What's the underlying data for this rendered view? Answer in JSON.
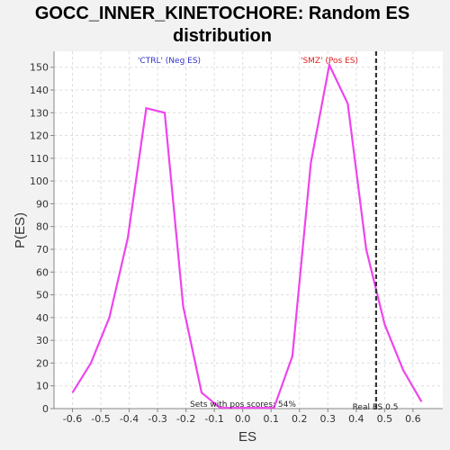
{
  "chart_data": {
    "type": "line",
    "title_lines": [
      "GOCC_INNER_KINETOCHORE: Random ES",
      "distribution"
    ],
    "xlabel": "ES",
    "ylabel": "P(ES)",
    "xlim": [
      -0.665,
      0.705
    ],
    "ylim": [
      0,
      157
    ],
    "xticks": [
      -0.6,
      -0.5,
      -0.4,
      -0.3,
      -0.2,
      -0.1,
      0.0,
      0.1,
      0.2,
      0.3,
      0.4,
      0.5,
      0.6
    ],
    "xtick_labels": [
      "-0.6",
      "-0.5",
      "-0.4",
      "-0.3",
      "-0.2",
      "-0.1",
      "0.0",
      "0.1",
      "0.2",
      "0.3",
      "0.4",
      "0.5",
      "0.6"
    ],
    "yticks": [
      0,
      10,
      20,
      30,
      40,
      50,
      60,
      70,
      80,
      90,
      100,
      110,
      120,
      130,
      140,
      150
    ],
    "ytick_labels": [
      "0",
      "10",
      "20",
      "30",
      "40",
      "50",
      "60",
      "70",
      "80",
      "90",
      "100",
      "110",
      "120",
      "130",
      "140",
      "150"
    ],
    "series": [
      {
        "name": "random ES",
        "color": "#ee44ee",
        "x": [
          -0.6,
          -0.535,
          -0.47,
          -0.405,
          -0.34,
          -0.275,
          -0.21,
          -0.145,
          -0.08,
          0.11,
          0.175,
          0.24,
          0.305,
          0.37,
          0.435,
          0.5,
          0.565,
          0.63
        ],
        "y": [
          7,
          20,
          40,
          75,
          132,
          130,
          45,
          7,
          0.3,
          0.3,
          23,
          108,
          151,
          134,
          70,
          37,
          17,
          3
        ]
      }
    ],
    "real_es": 0.47,
    "real_es_label": "Real ES 0.5",
    "annotations": {
      "neg_label": "'CTRL' (Neg ES)",
      "pos_label": "'SMZ' (Pos ES)",
      "pos_scores_label": "Sets with pos scores: 54%"
    },
    "colors": {
      "neg_label": "#3333cc",
      "pos_label": "#dd2222",
      "line": "#ee44ee",
      "grid": "#dddddd",
      "plot_bg": "#ffffff"
    }
  }
}
